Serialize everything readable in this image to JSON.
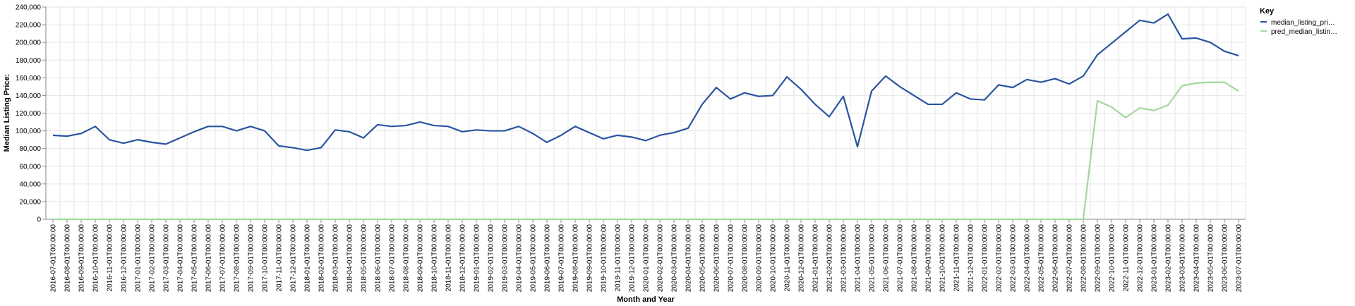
{
  "chart_data": {
    "type": "line",
    "title": "",
    "xlabel": "Month and Year",
    "ylabel": "Median Listing Price:",
    "ylim": [
      0,
      240000
    ],
    "y_ticks": [
      "0",
      "20,000",
      "40,000",
      "60,000",
      "80,000",
      "100,000",
      "120,000",
      "140,000",
      "160,000",
      "180,000",
      "200,000",
      "220,000",
      "240,000"
    ],
    "grid": true,
    "legend_placement": "top-right",
    "legend_title": "Key",
    "categories": [
      "2016-07-01T00:00:00",
      "2016-08-01T00:00:00",
      "2016-09-01T00:00:00",
      "2016-10-01T00:00:00",
      "2016-11-01T00:00:00",
      "2016-12-01T00:00:00",
      "2017-01-01T00:00:00",
      "2017-02-01T00:00:00",
      "2017-03-01T00:00:00",
      "2017-04-01T00:00:00",
      "2017-05-01T00:00:00",
      "2017-06-01T00:00:00",
      "2017-07-01T00:00:00",
      "2017-08-01T00:00:00",
      "2017-09-01T00:00:00",
      "2017-10-01T00:00:00",
      "2017-11-01T00:00:00",
      "2017-12-01T00:00:00",
      "2018-01-01T00:00:00",
      "2018-02-01T00:00:00",
      "2018-03-01T00:00:00",
      "2018-04-01T00:00:00",
      "2018-05-01T00:00:00",
      "2018-06-01T00:00:00",
      "2018-07-01T00:00:00",
      "2018-08-01T00:00:00",
      "2018-09-01T00:00:00",
      "2018-10-01T00:00:00",
      "2018-11-01T00:00:00",
      "2018-12-01T00:00:00",
      "2019-01-01T00:00:00",
      "2019-02-01T00:00:00",
      "2019-03-01T00:00:00",
      "2019-04-01T00:00:00",
      "2019-05-01T00:00:00",
      "2019-06-01T00:00:00",
      "2019-07-01T00:00:00",
      "2019-08-01T00:00:00",
      "2019-09-01T00:00:00",
      "2019-10-01T00:00:00",
      "2019-11-01T00:00:00",
      "2019-12-01T00:00:00",
      "2020-01-01T00:00:00",
      "2020-02-01T00:00:00",
      "2020-03-01T00:00:00",
      "2020-04-01T00:00:00",
      "2020-05-01T00:00:00",
      "2020-06-01T00:00:00",
      "2020-07-01T00:00:00",
      "2020-08-01T00:00:00",
      "2020-09-01T00:00:00",
      "2020-10-01T00:00:00",
      "2020-11-01T00:00:00",
      "2020-12-01T00:00:00",
      "2021-01-01T00:00:00",
      "2021-02-01T00:00:00",
      "2021-03-01T00:00:00",
      "2021-04-01T00:00:00",
      "2021-05-01T00:00:00",
      "2021-06-01T00:00:00",
      "2021-07-01T00:00:00",
      "2021-08-01T00:00:00",
      "2021-09-01T00:00:00",
      "2021-10-01T00:00:00",
      "2021-11-01T00:00:00",
      "2021-12-01T00:00:00",
      "2022-01-01T00:00:00",
      "2022-02-01T00:00:00",
      "2022-03-01T00:00:00",
      "2022-04-01T00:00:00",
      "2022-05-01T00:00:00",
      "2022-06-01T00:00:00",
      "2022-07-01T00:00:00",
      "2022-08-01T00:00:00",
      "2022-09-01T00:00:00",
      "2022-10-01T00:00:00",
      "2022-11-01T00:00:00",
      "2022-12-01T00:00:00",
      "2023-01-01T00:00:00",
      "2023-02-01T00:00:00",
      "2023-03-01T00:00:00",
      "2023-04-01T00:00:00",
      "2023-05-01T00:00:00",
      "2023-06-01T00:00:00",
      "2023-07-01T00:00:00"
    ],
    "series": [
      {
        "name": "median_listing_pri…",
        "color": "#2a55a0",
        "values": [
          95000,
          94000,
          97000,
          105000,
          90000,
          86000,
          90000,
          87000,
          85000,
          92000,
          99000,
          105000,
          105000,
          100000,
          105000,
          100000,
          83000,
          81000,
          78000,
          81000,
          101000,
          99000,
          92000,
          107000,
          105000,
          106000,
          110000,
          106000,
          105000,
          99000,
          101000,
          100000,
          100000,
          105000,
          97000,
          87000,
          95000,
          105000,
          98000,
          91000,
          95000,
          93000,
          89000,
          95000,
          98000,
          103000,
          130000,
          149000,
          136000,
          143000,
          139000,
          140000,
          161000,
          147000,
          130000,
          116000,
          139000,
          82000,
          145000,
          162000,
          150000,
          140000,
          130000,
          130000,
          143000,
          136000,
          135000,
          152000,
          149000,
          158000,
          155000,
          159000,
          153000,
          162000,
          186000,
          199000,
          212000,
          225000,
          222000,
          232000,
          204000,
          205000,
          200000,
          190000,
          185000
        ]
      },
      {
        "name": "pred_median_listin…",
        "color": "#a1d99b",
        "values": [
          0,
          0,
          0,
          0,
          0,
          0,
          0,
          0,
          0,
          0,
          0,
          0,
          0,
          0,
          0,
          0,
          0,
          0,
          0,
          0,
          0,
          0,
          0,
          0,
          0,
          0,
          0,
          0,
          0,
          0,
          0,
          0,
          0,
          0,
          0,
          0,
          0,
          0,
          0,
          0,
          0,
          0,
          0,
          0,
          0,
          0,
          0,
          0,
          0,
          0,
          0,
          0,
          0,
          0,
          0,
          0,
          0,
          0,
          0,
          0,
          0,
          0,
          0,
          0,
          0,
          0,
          0,
          0,
          0,
          0,
          0,
          0,
          0,
          0,
          134000,
          127000,
          115000,
          126000,
          123000,
          129000,
          151000,
          154000,
          155000,
          155000,
          145000
        ]
      }
    ]
  }
}
